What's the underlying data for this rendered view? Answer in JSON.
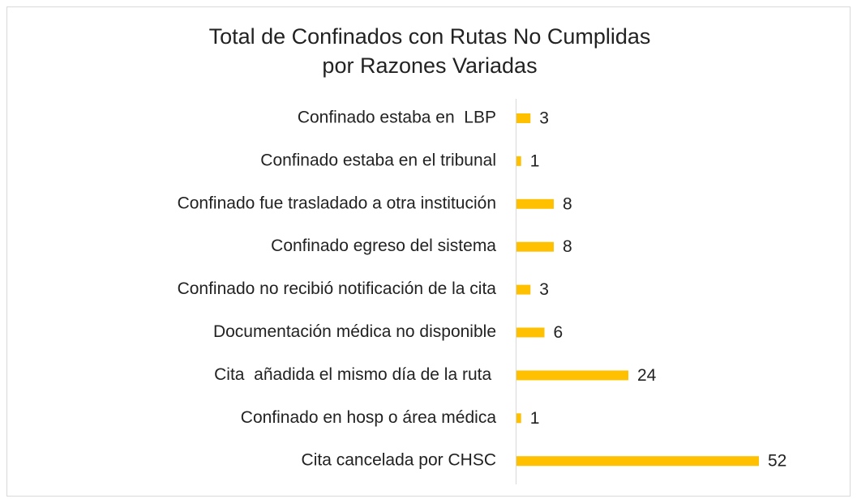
{
  "chart_data": {
    "type": "hbar",
    "title": [
      "Total de Confinados con Rutas No Cumplidas",
      "por Razones Variadas"
    ],
    "categories": [
      "Confinado estaba en  LBP",
      "Confinado estaba en el tribunal",
      "Confinado fue trasladado a otra institución",
      "Confinado egreso del sistema",
      "Confinado no recibió notificación de la cita",
      "Documentación médica no disponible",
      "Cita  añadida el mismo día de la ruta ",
      "Confinado en hosp o área médica",
      "Cita cancelada por CHSC"
    ],
    "values": [
      3,
      1,
      8,
      8,
      3,
      6,
      24,
      1,
      52
    ],
    "color": "#ffc000"
  }
}
